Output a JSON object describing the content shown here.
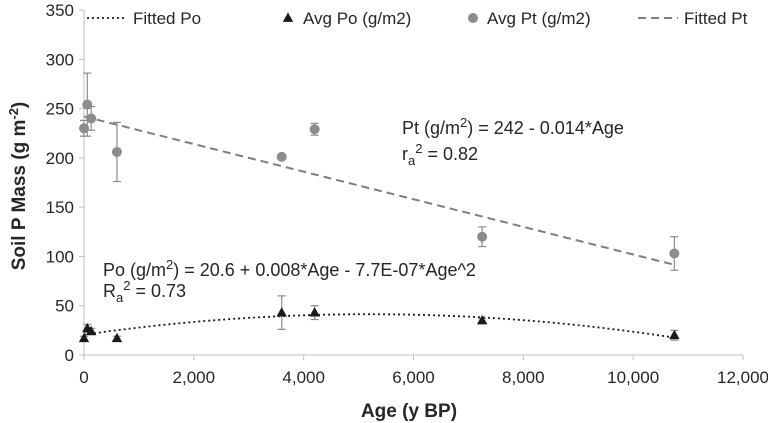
{
  "chart_data": {
    "type": "scatter",
    "title": "",
    "xlabel": "Age (y BP)",
    "ylabel": "Soil P Mass (g m⁻²)",
    "xlim": [
      0,
      12000
    ],
    "ylim": [
      0,
      350
    ],
    "x_ticks": [
      0,
      2000,
      4000,
      6000,
      8000,
      10000,
      12000
    ],
    "x_tick_labels": [
      "0",
      "2,000",
      "4,000",
      "6,000",
      "8,000",
      "10,000",
      "12,000"
    ],
    "y_ticks": [
      0,
      50,
      100,
      150,
      200,
      250,
      300,
      350
    ],
    "y_tick_labels": [
      "0",
      "50",
      "100",
      "150",
      "200",
      "250",
      "300",
      "350"
    ],
    "grid": false,
    "legend_position": "top",
    "legend": [
      "Fitted Po",
      "Avg Po (g/m2)",
      "Avg Pt (g/m2)",
      "Fitted Pt"
    ],
    "series": [
      {
        "name": "Avg Pt (g/m2)",
        "marker": "circle",
        "color": "#8c8c8c",
        "x": [
          0,
          60,
          130,
          600,
          3600,
          4200,
          7250,
          10750
        ],
        "y": [
          230,
          254,
          240,
          206,
          201,
          229,
          120,
          103
        ],
        "err": [
          8,
          32,
          12,
          30,
          2,
          6,
          10,
          17
        ]
      },
      {
        "name": "Avg Po (g/m2)",
        "marker": "triangle",
        "color": "#1a1a1a",
        "x": [
          0,
          60,
          130,
          600,
          3600,
          4200,
          7250,
          10750
        ],
        "y": [
          17,
          27,
          24,
          17,
          43,
          43,
          35,
          20
        ],
        "err": [
          2,
          4,
          3,
          2,
          17,
          7,
          2,
          5
        ]
      },
      {
        "name": "Fitted Pt",
        "type": "line",
        "style": "dashed",
        "color": "#7f7f7f",
        "equation": {
          "intercept": 242,
          "slope": -0.014
        },
        "x_range": [
          0,
          10750
        ]
      },
      {
        "name": "Fitted Po",
        "type": "line",
        "style": "dotted",
        "color": "#1a1a1a",
        "equation": {
          "c0": 20.6,
          "c1": 0.008,
          "c2": -7.7e-07
        },
        "x_range": [
          0,
          10750
        ]
      }
    ],
    "annotations": {
      "pt_equation": {
        "prefix": "Pt (g/m",
        "sup": "2",
        "suffix": ") = 242 - 0.014*Age"
      },
      "pt_r2": {
        "base": "r",
        "sub": "a",
        "sup": "2",
        "suffix": " = 0.82"
      },
      "po_equation": {
        "prefix": "Po (g/m",
        "sup": "2",
        "suffix": ") = 20.6 + 0.008*Age - 7.7E-07*Age^2"
      },
      "po_r2": {
        "base": "R",
        "sub": "a",
        "sup": "2",
        "suffix": " = 0.73"
      }
    },
    "ylabel_parts": {
      "main": "Soil P Mass (g m",
      "sup": "-2",
      "end": ")"
    }
  }
}
